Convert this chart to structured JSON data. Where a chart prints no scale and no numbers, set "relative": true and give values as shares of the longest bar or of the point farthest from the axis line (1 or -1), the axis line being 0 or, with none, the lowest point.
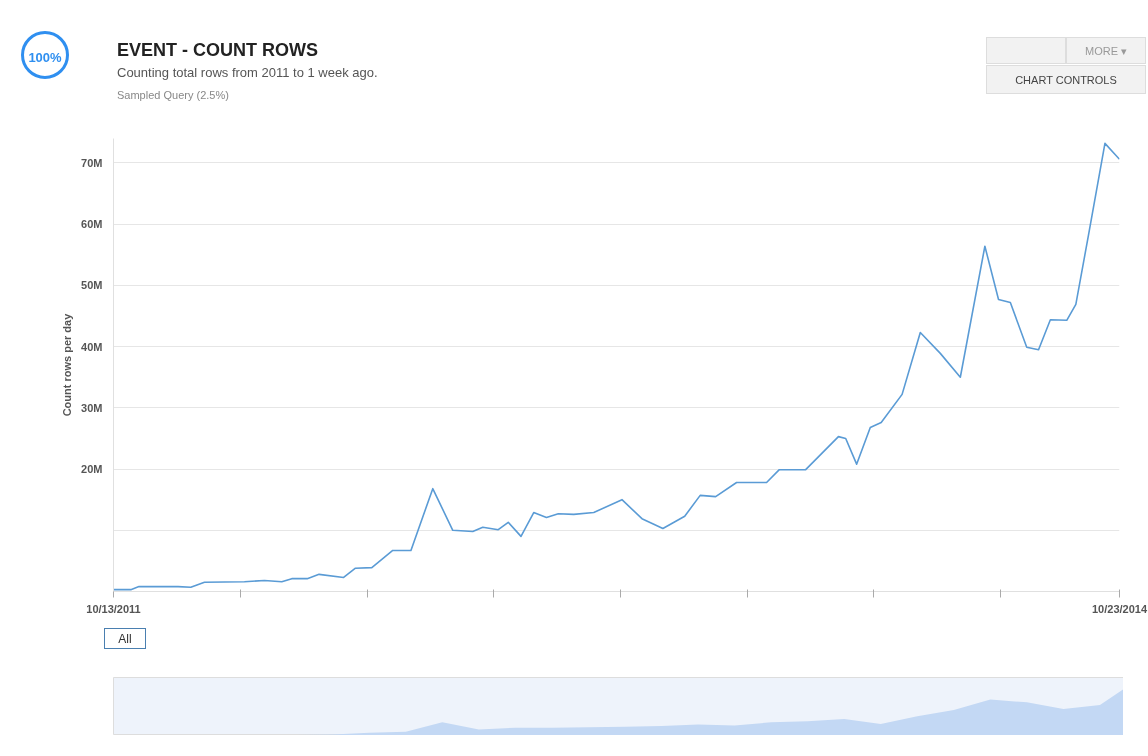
{
  "chart_data": [
    {
      "type": "line",
      "title": "EVENT - COUNT ROWS",
      "subtitle": "Counting total rows from 2011 to 1 week ago.",
      "ylabel": "Count rows per day",
      "annotations": [
        "Sampled Query (2.5%)",
        "100%",
        "MORE ▾",
        "CHART CONTROLS",
        "All"
      ],
      "x": [
        "2011-10-13",
        "2011-11-01",
        "2011-11-10",
        "2011-12-23",
        "2012-01-06",
        "2012-01-21",
        "2012-03-05",
        "2012-03-27",
        "2012-04-15",
        "2012-04-26",
        "2012-05-13",
        "2012-05-26",
        "2012-06-22",
        "2012-07-05",
        "2012-07-23",
        "2012-08-15",
        "2012-09-04",
        "2012-09-28",
        "2012-10-20",
        "2012-11-11",
        "2012-11-22",
        "2012-12-09",
        "2012-12-20",
        "2013-01-03",
        "2013-01-17",
        "2013-01-31",
        "2013-02-13",
        "2013-03-02",
        "2013-03-24",
        "2013-04-24",
        "2013-05-16",
        "2013-06-08",
        "2013-07-02",
        "2013-07-19",
        "2013-08-05",
        "2013-08-28",
        "2013-09-30",
        "2013-10-14",
        "2013-11-12",
        "2013-12-18",
        "2013-12-26",
        "2014-01-07",
        "2014-01-22",
        "2014-02-03",
        "2014-02-26",
        "2014-03-18",
        "2014-04-09",
        "2014-05-01",
        "2014-05-28",
        "2014-06-12",
        "2014-06-25",
        "2014-07-13",
        "2014-07-26",
        "2014-08-08",
        "2014-08-26",
        "2014-09-05",
        "2014-09-19",
        "2014-10-07",
        "2014-10-23"
      ],
      "series": [
        {
          "color": "#5a9bd5",
          "values": [
            300000,
            300000,
            800000,
            800000,
            700000,
            1500000,
            1600000,
            1800000,
            1600000,
            2100000,
            2100000,
            2800000,
            2300000,
            3800000,
            3900000,
            6700000,
            6700000,
            16800000,
            10000000,
            9800000,
            10500000,
            10100000,
            11300000,
            9000000,
            12900000,
            12100000,
            12700000,
            12600000,
            12900000,
            15000000,
            11900000,
            10300000,
            12300000,
            15700000,
            15500000,
            17800000,
            17800000,
            19900000,
            19900000,
            25300000,
            25000000,
            20800000,
            26800000,
            27600000,
            32200000,
            42300000,
            38900000,
            35000000,
            56400000,
            47700000,
            47200000,
            39900000,
            39500000,
            44400000,
            44300000,
            46900000,
            58300000,
            73200000,
            70600000
          ]
        }
      ],
      "xlim": [
        "2011-10-13",
        "2014-10-23"
      ],
      "xticks": [
        {
          "value": "2011-10-13",
          "label": "10/13/2011"
        },
        {
          "value": "2012-03-01",
          "label": null
        },
        {
          "value": "2012-07-18",
          "label": null
        },
        {
          "value": "2012-12-04",
          "label": null
        },
        {
          "value": "2013-04-22",
          "label": null
        },
        {
          "value": "2013-09-09",
          "label": null
        },
        {
          "value": "2014-01-25",
          "label": null
        },
        {
          "value": "2014-06-14",
          "label": null
        },
        {
          "value": "2014-10-23",
          "label": "10/23/2014"
        }
      ],
      "ylim": [
        0,
        74000000
      ],
      "yticks": [
        {
          "value": 10000000,
          "label": null
        },
        {
          "value": 20000000,
          "label": "20M"
        },
        {
          "value": 30000000,
          "label": "30M"
        },
        {
          "value": 40000000,
          "label": "40M"
        },
        {
          "value": 50000000,
          "label": "50M"
        },
        {
          "value": 60000000,
          "label": "60M"
        },
        {
          "value": 70000000,
          "label": "70M"
        }
      ],
      "grid": "y",
      "marker": "none",
      "line_style": "solid"
    },
    {
      "type": "area",
      "relative": true,
      "tick_labels": false,
      "categories": [
        null,
        null,
        null,
        null,
        null,
        null,
        null,
        null,
        null,
        null,
        null,
        null,
        null,
        null,
        null,
        null,
        null,
        null,
        null,
        null,
        null,
        null,
        null,
        null,
        null,
        null,
        null,
        null,
        null
      ],
      "series": [
        {
          "color": "#c3d8f4",
          "values": [
            0,
            0,
            0,
            0,
            0.01,
            0.01,
            0.02,
            0.05,
            0.07,
            0.24,
            0.11,
            0.14,
            0.14,
            0.15,
            0.16,
            0.17,
            0.2,
            0.18,
            0.24,
            0.26,
            0.3,
            0.21,
            0.35,
            0.46,
            0.65,
            0.6,
            0.48,
            0.55,
            1.0
          ]
        }
      ]
    }
  ]
}
